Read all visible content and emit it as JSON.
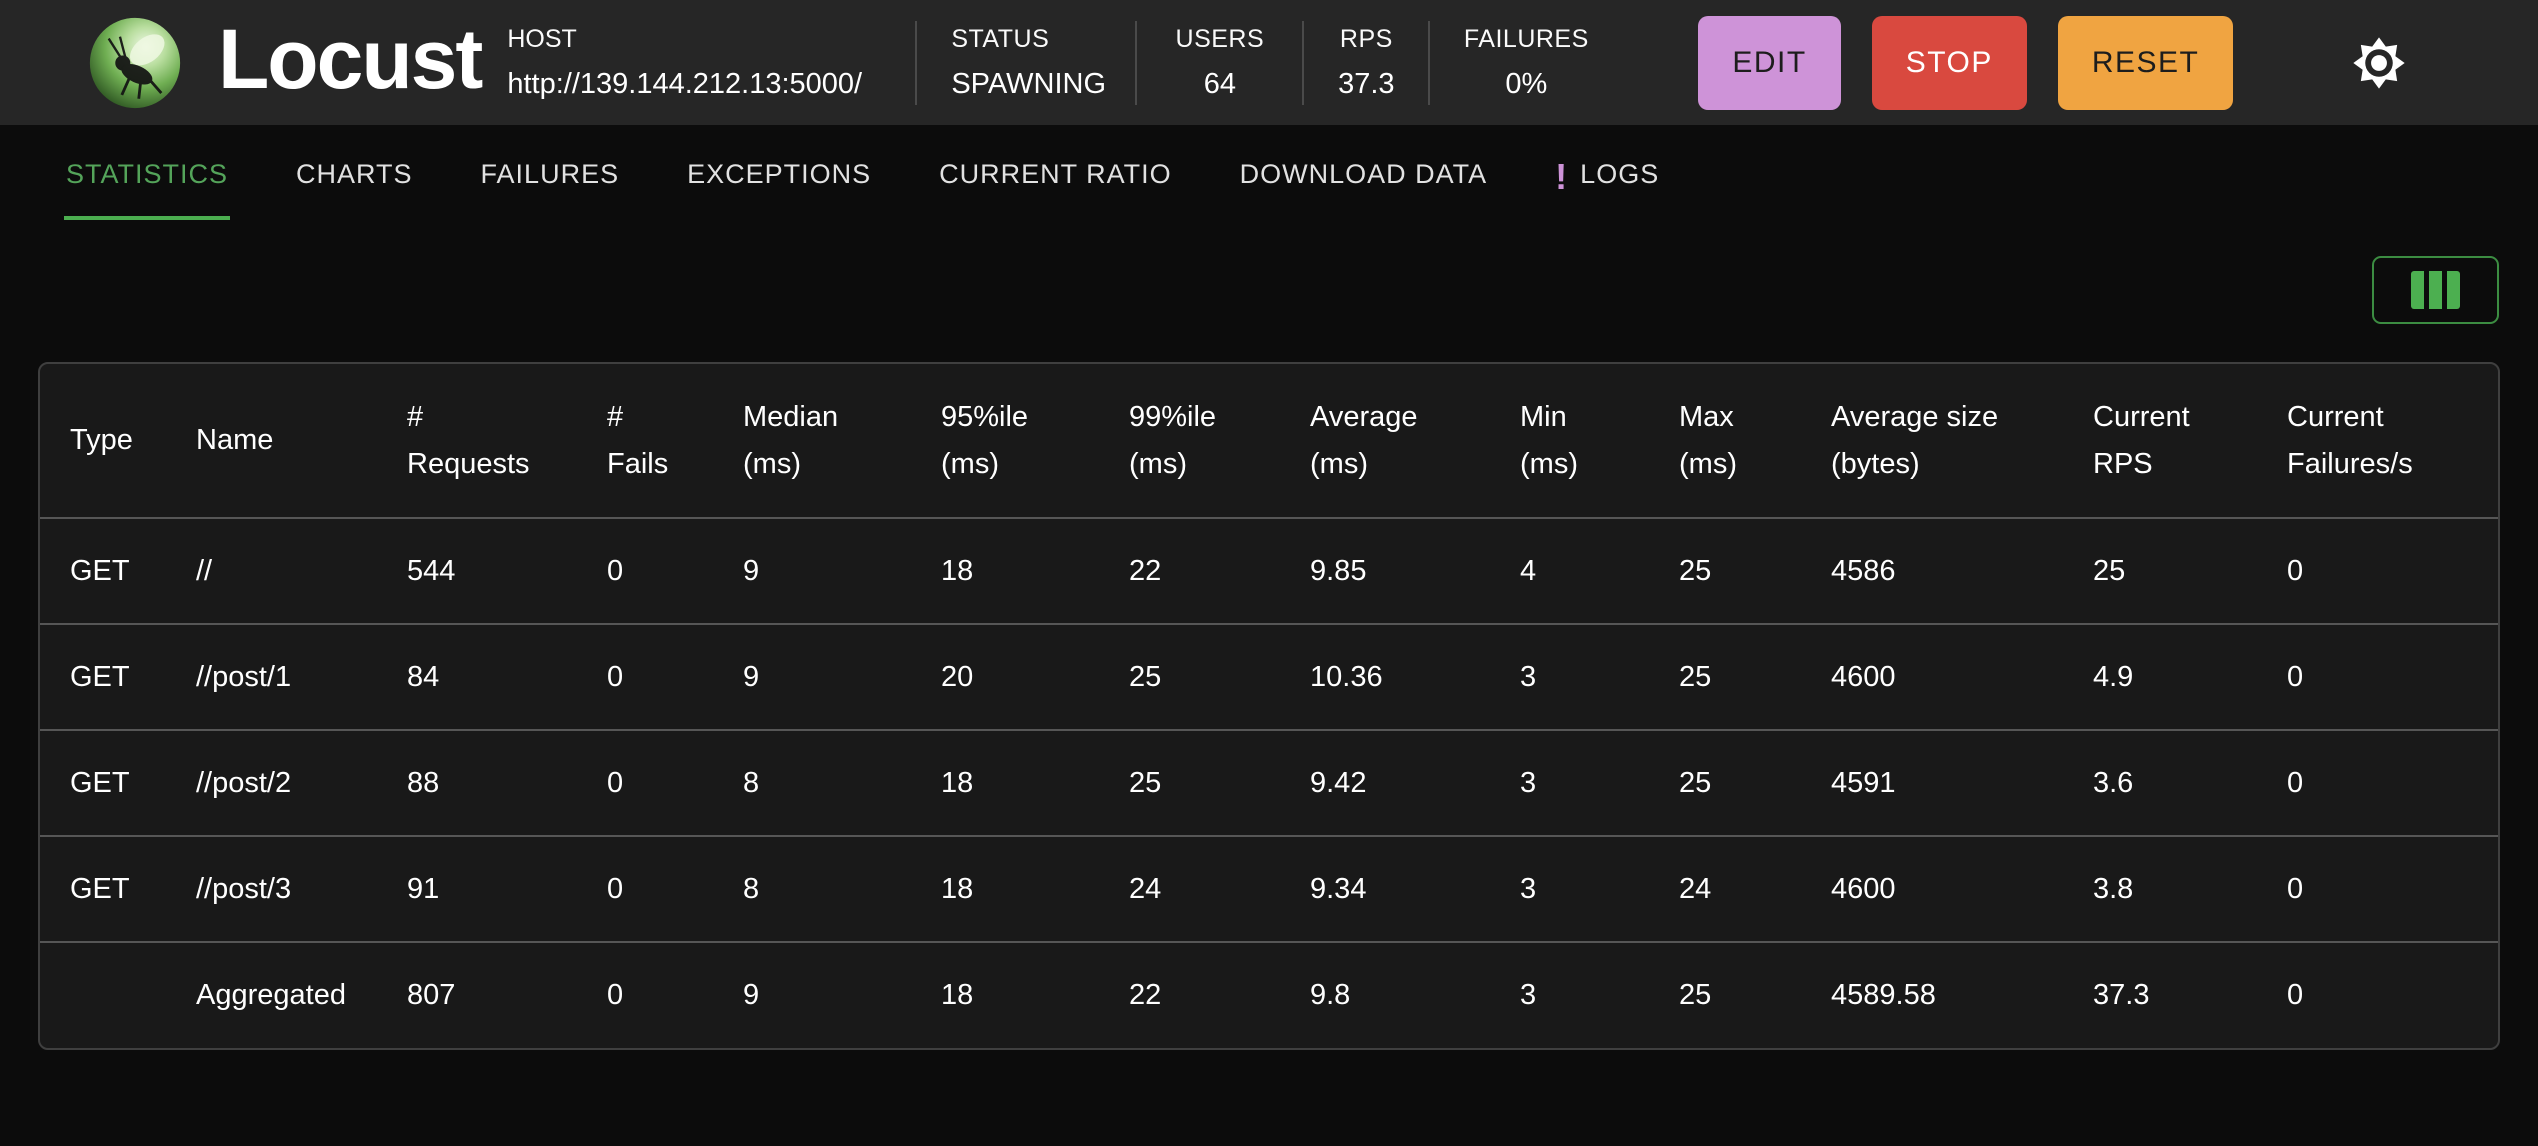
{
  "colors": {
    "accent_green": "#4caf50",
    "tab_active_green": "#54a45a",
    "edit_purple": "#ce93d8",
    "stop_red": "#d9493f",
    "reset_orange": "#f0a441",
    "logs_badge_purple": "#ce93d8"
  },
  "header": {
    "brand": "Locust",
    "host": {
      "label": "HOST",
      "value": "http://139.144.212.13:5000/"
    },
    "stats": [
      {
        "label": "STATUS",
        "value": "SPAWNING"
      },
      {
        "label": "USERS",
        "value": "64"
      },
      {
        "label": "RPS",
        "value": "37.3"
      },
      {
        "label": "FAILURES",
        "value": "0%"
      }
    ],
    "buttons": [
      {
        "label": "EDIT",
        "color": "#ce93d8",
        "text_color": "#1d1d1d"
      },
      {
        "label": "STOP",
        "color": "#d9493f",
        "text_color": "#ffffff"
      },
      {
        "label": "RESET",
        "color": "#f0a441",
        "text_color": "#1d1d1d"
      }
    ]
  },
  "tabs": [
    {
      "label": "STATISTICS",
      "active": true
    },
    {
      "label": "CHARTS"
    },
    {
      "label": "FAILURES"
    },
    {
      "label": "EXCEPTIONS"
    },
    {
      "label": "CURRENT RATIO"
    },
    {
      "label": "DOWNLOAD DATA"
    },
    {
      "label": "LOGS",
      "badge": "!"
    }
  ],
  "table": {
    "columns": [
      "Type",
      "Name",
      "#\nRequests",
      "#\nFails",
      "Median\n(ms)",
      "95%ile\n(ms)",
      "99%ile\n(ms)",
      "Average\n(ms)",
      "Min\n(ms)",
      "Max\n(ms)",
      "Average size\n(bytes)",
      "Current\nRPS",
      "Current\nFailures/s"
    ],
    "rows": [
      [
        "GET",
        "//",
        "544",
        "0",
        "9",
        "18",
        "22",
        "9.85",
        "4",
        "25",
        "4586",
        "25",
        "0"
      ],
      [
        "GET",
        "//post/1",
        "84",
        "0",
        "9",
        "20",
        "25",
        "10.36",
        "3",
        "25",
        "4600",
        "4.9",
        "0"
      ],
      [
        "GET",
        "//post/2",
        "88",
        "0",
        "8",
        "18",
        "25",
        "9.42",
        "3",
        "25",
        "4591",
        "3.6",
        "0"
      ],
      [
        "GET",
        "//post/3",
        "91",
        "0",
        "8",
        "18",
        "24",
        "9.34",
        "3",
        "24",
        "4600",
        "3.8",
        "0"
      ],
      [
        "",
        "Aggregated",
        "807",
        "0",
        "9",
        "18",
        "22",
        "9.8",
        "3",
        "25",
        "4589.58",
        "37.3",
        "0"
      ]
    ]
  }
}
